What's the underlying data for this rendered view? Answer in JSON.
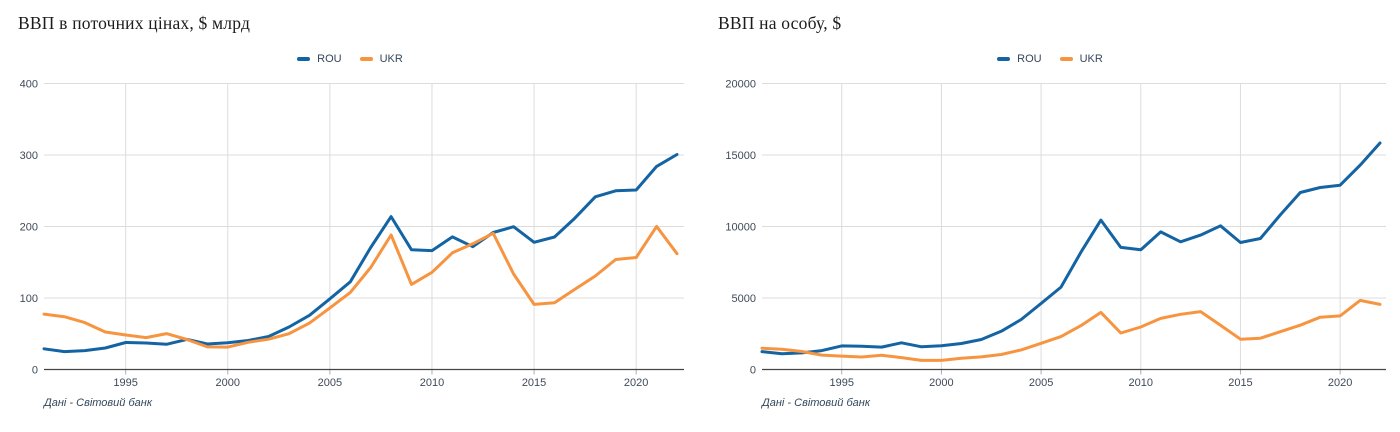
{
  "colors": {
    "rou": "#1464a3",
    "ukr": "#f79440",
    "grid": "#dcdcdc",
    "axis": "#444444",
    "tick": "#a9b0b8",
    "tick_label": "#3e4a59",
    "title": "#1c1c1c",
    "source": "#33475b",
    "background": "#ffffff"
  },
  "chart_data": [
    {
      "type": "line",
      "title": "ВВП в поточних цінах, $ млрд",
      "source": "Дані - Світовий банк",
      "legend_position": "top-center",
      "grid": true,
      "xlabel": "",
      "ylabel": "",
      "ylim": [
        0,
        400
      ],
      "yticks": [
        0,
        100,
        200,
        300,
        400
      ],
      "xticks": [
        1995,
        2000,
        2005,
        2010,
        2015,
        2020
      ],
      "x": [
        1991,
        1992,
        1993,
        1994,
        1995,
        1996,
        1997,
        1998,
        1999,
        2000,
        2001,
        2002,
        2003,
        2004,
        2005,
        2006,
        2007,
        2008,
        2009,
        2010,
        2011,
        2012,
        2013,
        2014,
        2015,
        2016,
        2017,
        2018,
        2019,
        2020,
        2021,
        2022
      ],
      "series": [
        {
          "name": "ROU",
          "color": "#1464a3",
          "values": [
            28.9,
            25.1,
            26.4,
            30.1,
            37.7,
            37.1,
            35.3,
            42.1,
            35.6,
            37.3,
            40.6,
            46.1,
            59.5,
            75.8,
            98.9,
            122.7,
            170.6,
            213.8,
            167.4,
            166.3,
            185.4,
            171.7,
            191.6,
            199.7,
            177.9,
            185.3,
            211.7,
            241.5,
            249.9,
            251.0,
            284.1,
            300.7
          ]
        },
        {
          "name": "UKR",
          "color": "#f79440",
          "values": [
            77.5,
            73.9,
            65.6,
            52.5,
            48.2,
            44.6,
            50.2,
            41.9,
            31.6,
            31.3,
            38.0,
            42.4,
            50.1,
            64.9,
            86.1,
            107.8,
            142.7,
            188.1,
            119.0,
            136.0,
            163.2,
            175.8,
            190.5,
            133.5,
            91.0,
            93.4,
            112.1,
            130.8,
            153.9,
            156.6,
            200.1,
            161.9
          ]
        }
      ]
    },
    {
      "type": "line",
      "title": "ВВП на особу, $",
      "source": "Дані - Світовий банк",
      "legend_position": "top-center",
      "grid": true,
      "xlabel": "",
      "ylabel": "",
      "ylim": [
        0,
        20000
      ],
      "yticks": [
        0,
        5000,
        10000,
        15000,
        20000
      ],
      "xticks": [
        1995,
        2000,
        2005,
        2010,
        2015,
        2020
      ],
      "x": [
        1991,
        1992,
        1993,
        1994,
        1995,
        1996,
        1997,
        1998,
        1999,
        2000,
        2001,
        2002,
        2003,
        2004,
        2005,
        2006,
        2007,
        2008,
        2009,
        2010,
        2011,
        2012,
        2013,
        2014,
        2015,
        2016,
        2017,
        2018,
        2019,
        2020,
        2021,
        2022
      ],
      "series": [
        {
          "name": "ROU",
          "color": "#1464a3",
          "values": [
            1250,
            1100,
            1160,
            1320,
            1650,
            1630,
            1565,
            1870,
            1585,
            1660,
            1815,
            2100,
            2670,
            3495,
            4620,
            5760,
            8210,
            10450,
            8540,
            8370,
            9625,
            8930,
            9400,
            10050,
            8880,
            9160,
            10810,
            12380,
            12730,
            12890,
            14290,
            15840
          ]
        },
        {
          "name": "UKR",
          "color": "#f79440",
          "values": [
            1490,
            1420,
            1260,
            1010,
            935,
            875,
            990,
            835,
            635,
            635,
            780,
            880,
            1050,
            1370,
            1830,
            2300,
            3070,
            3990,
            2550,
            2970,
            3570,
            3860,
            4050,
            3100,
            2120,
            2190,
            2640,
            3100,
            3660,
            3750,
            4830,
            4550
          ]
        }
      ]
    }
  ]
}
